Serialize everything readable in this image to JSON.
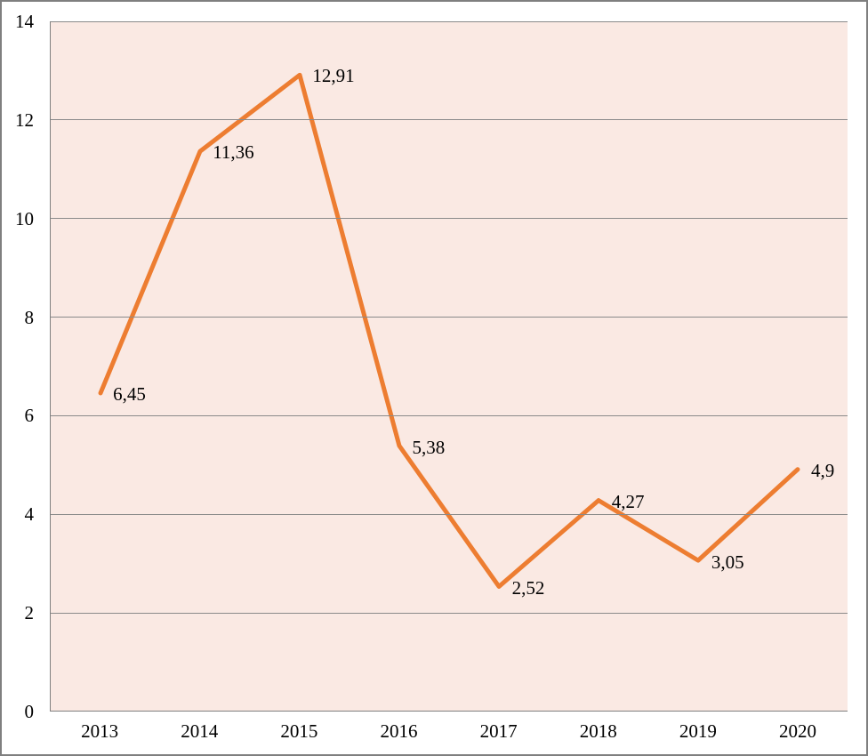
{
  "chart_data": {
    "type": "line",
    "title": "",
    "xlabel": "",
    "ylabel": "",
    "legend": "none",
    "grid": "horizontal",
    "categories": [
      "2013",
      "2014",
      "2015",
      "2016",
      "2017",
      "2018",
      "2019",
      "2020"
    ],
    "values": [
      6.45,
      11.36,
      12.91,
      5.38,
      2.52,
      4.27,
      3.05,
      4.9
    ],
    "data_labels": [
      "6,45",
      "11,36",
      "12,91",
      "5,38",
      "2,52",
      "4,27",
      "3,05",
      "4,9"
    ],
    "decimal_separator": ",",
    "ylim": [
      0,
      14
    ],
    "y_ticks": [
      0,
      2,
      4,
      6,
      8,
      10,
      12,
      14
    ],
    "y_tick_labels": [
      "0",
      "2",
      "4",
      "6",
      "8",
      "10",
      "12",
      "14"
    ],
    "colors": {
      "line": "#ED7D31",
      "plot_background": "#FAE9E3",
      "gridline": "#8A8A8A",
      "axis_line": "#7F7F7F",
      "outer_border": "#7F7F7F",
      "text": "#000000"
    }
  }
}
